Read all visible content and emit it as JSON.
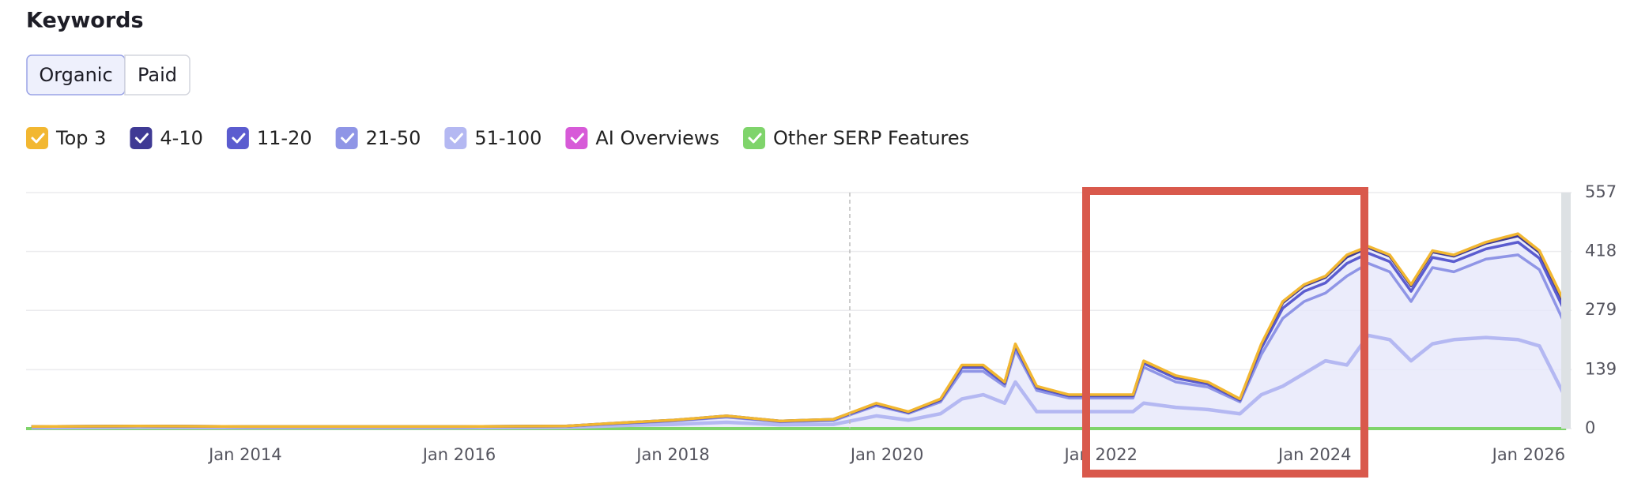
{
  "header": {
    "title": "Keywords",
    "tabs": [
      "Organic",
      "Paid"
    ]
  },
  "chart_data": {
    "type": "line",
    "stacked": true,
    "x": [
      2012.0,
      2013.0,
      2014.0,
      2015.0,
      2016.0,
      2017.0,
      2017.6,
      2018.0,
      2018.5,
      2019.0,
      2019.5,
      2019.9,
      2020.2,
      2020.5,
      2020.7,
      2020.9,
      2021.1,
      2021.2,
      2021.4,
      2021.7,
      2022.0,
      2022.3,
      2022.4,
      2022.7,
      2023.0,
      2023.3,
      2023.5,
      2023.7,
      2023.9,
      2024.1,
      2024.3,
      2024.5,
      2024.7,
      2024.9,
      2025.1,
      2025.3,
      2025.6,
      2025.9,
      2026.1,
      2026.35
    ],
    "series": [
      {
        "name": "51-100",
        "color": "#b4b8f2",
        "values": [
          2,
          3,
          2,
          2,
          2,
          3,
          8,
          10,
          15,
          9,
          10,
          30,
          20,
          35,
          70,
          80,
          60,
          110,
          40,
          40,
          40,
          40,
          60,
          50,
          45,
          35,
          80,
          100,
          130,
          160,
          150,
          220,
          210,
          160,
          200,
          210,
          215,
          210,
          195,
          70
        ]
      },
      {
        "name": "21-50",
        "color": "#8f95e6",
        "values": [
          2,
          2,
          2,
          2,
          2,
          2,
          5,
          8,
          12,
          7,
          9,
          24,
          16,
          28,
          65,
          55,
          40,
          75,
          50,
          32,
          32,
          32,
          85,
          60,
          53,
          28,
          95,
          160,
          170,
          160,
          210,
          170,
          160,
          140,
          180,
          160,
          185,
          200,
          180,
          170
        ]
      },
      {
        "name": "11-20",
        "color": "#5b5ccf",
        "values": [
          1,
          1,
          1,
          1,
          1,
          1,
          1,
          1,
          2,
          1,
          2,
          3,
          2,
          4,
          9,
          9,
          6,
          9,
          6,
          5,
          5,
          5,
          9,
          9,
          7,
          4,
          15,
          24,
          24,
          24,
          30,
          24,
          24,
          24,
          24,
          24,
          24,
          30,
          27,
          30
        ]
      },
      {
        "name": "4-10",
        "color": "#3f3a94",
        "values": [
          0,
          0,
          0,
          0,
          0,
          0,
          1,
          1,
          1,
          1,
          1,
          2,
          1,
          2,
          5,
          5,
          3,
          5,
          3,
          2,
          2,
          2,
          5,
          5,
          4,
          2,
          8,
          13,
          13,
          13,
          15,
          13,
          13,
          13,
          13,
          13,
          13,
          15,
          14,
          15
        ]
      },
      {
        "name": "Top 3",
        "color": "#f2b731",
        "values": [
          0,
          0,
          0,
          0,
          0,
          0,
          0,
          0,
          0,
          0,
          0,
          1,
          1,
          1,
          1,
          1,
          1,
          1,
          1,
          1,
          1,
          1,
          1,
          1,
          1,
          1,
          2,
          3,
          3,
          3,
          5,
          3,
          3,
          3,
          3,
          3,
          3,
          5,
          4,
          5
        ]
      }
    ],
    "legend_order": [
      4,
      3,
      2,
      1,
      0
    ],
    "extra_legend": [
      {
        "name": "AI Overviews",
        "color": "#d75ad8"
      },
      {
        "name": "Other SERP Features",
        "color": "#7fd46b"
      }
    ],
    "xlim": [
      2011.95,
      2026.4
    ],
    "xticks": [
      {
        "value": 2014,
        "label": "Jan 2014"
      },
      {
        "value": 2016,
        "label": "Jan 2016"
      },
      {
        "value": 2018,
        "label": "Jan 2018"
      },
      {
        "value": 2020,
        "label": "Jan 2020"
      },
      {
        "value": 2022,
        "label": "Jan 2022"
      },
      {
        "value": 2024,
        "label": "Jan 2024"
      },
      {
        "value": 2026,
        "label": "Jan 2026"
      }
    ],
    "ylim": [
      0,
      557
    ],
    "yticks": [
      0,
      139,
      279,
      418,
      557
    ],
    "grid": true
  }
}
